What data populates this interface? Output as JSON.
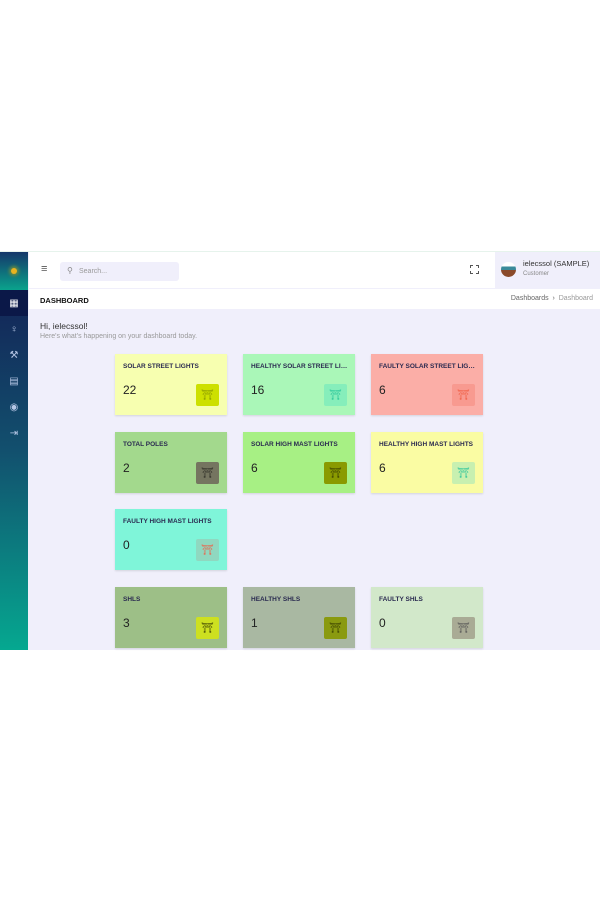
{
  "sidebar": {
    "items": [
      {
        "icon": "dashboard-icon",
        "active": true
      },
      {
        "icon": "lightbulb-icon"
      },
      {
        "icon": "wrench-icon"
      },
      {
        "icon": "report-icon"
      },
      {
        "icon": "user-circle-icon"
      },
      {
        "icon": "logout-icon"
      }
    ]
  },
  "header": {
    "search_placeholder": "Search...",
    "user_name": "ielecssol (SAMPLE)",
    "user_role": "Customer"
  },
  "breadcrumb": {
    "page_title": "DASHBOARD",
    "items": [
      "Dashboards",
      "Dashboard"
    ]
  },
  "greeting": {
    "title": "Hi, ielecssol!",
    "subtitle": "Here's what's happening on your dashboard today."
  },
  "cards": [
    {
      "label": "SOLAR STREET LIGHTS",
      "value": "22",
      "bg": "#f7ffb0",
      "icon_bg": "#cde000",
      "icon_color": "#8a9a00"
    },
    {
      "label": "HEALTHY SOLAR STREET LIGHTS",
      "value": "16",
      "bg": "#aaf7b8",
      "icon_bg": "#86eebb",
      "icon_color": "#2ac79a"
    },
    {
      "label": "FAULTY SOLAR STREET LIGHTS",
      "value": "6",
      "bg": "#fbaea7",
      "icon_bg": "#f89a90",
      "icon_color": "#f05f46"
    },
    {
      "label": "TOTAL POLES",
      "value": "2",
      "bg": "#a3d98d",
      "icon_bg": "#757560",
      "icon_color": "#2e2e26"
    },
    {
      "label": "SOLAR HIGH MAST LIGHTS",
      "value": "6",
      "bg": "#a7f084",
      "icon_bg": "#8a9a00",
      "icon_color": "#3a4000"
    },
    {
      "label": "HEALTHY HIGH MAST LIGHTS",
      "value": "6",
      "bg": "#fafca3",
      "icon_bg": "#c8f0b0",
      "icon_color": "#2bc49a"
    },
    {
      "label": "FAULTY HIGH MAST LIGHTS",
      "value": "0",
      "bg": "#7ff5d9",
      "icon_bg": "#8fd8c0",
      "icon_color": "#f05f46"
    },
    {
      "label": "SHLS",
      "value": "3",
      "bg": "#9dbf87",
      "icon_bg": "#cde020",
      "icon_color": "#3a4000"
    },
    {
      "label": "HEALTHY SHLS",
      "value": "1",
      "bg": "#a9b8a2",
      "icon_bg": "#8a9a10",
      "icon_color": "#3a4000"
    },
    {
      "label": "FAULTY SHLS",
      "value": "0",
      "bg": "#d2e8ca",
      "icon_bg": "#a9ab95",
      "icon_color": "#555"
    }
  ]
}
